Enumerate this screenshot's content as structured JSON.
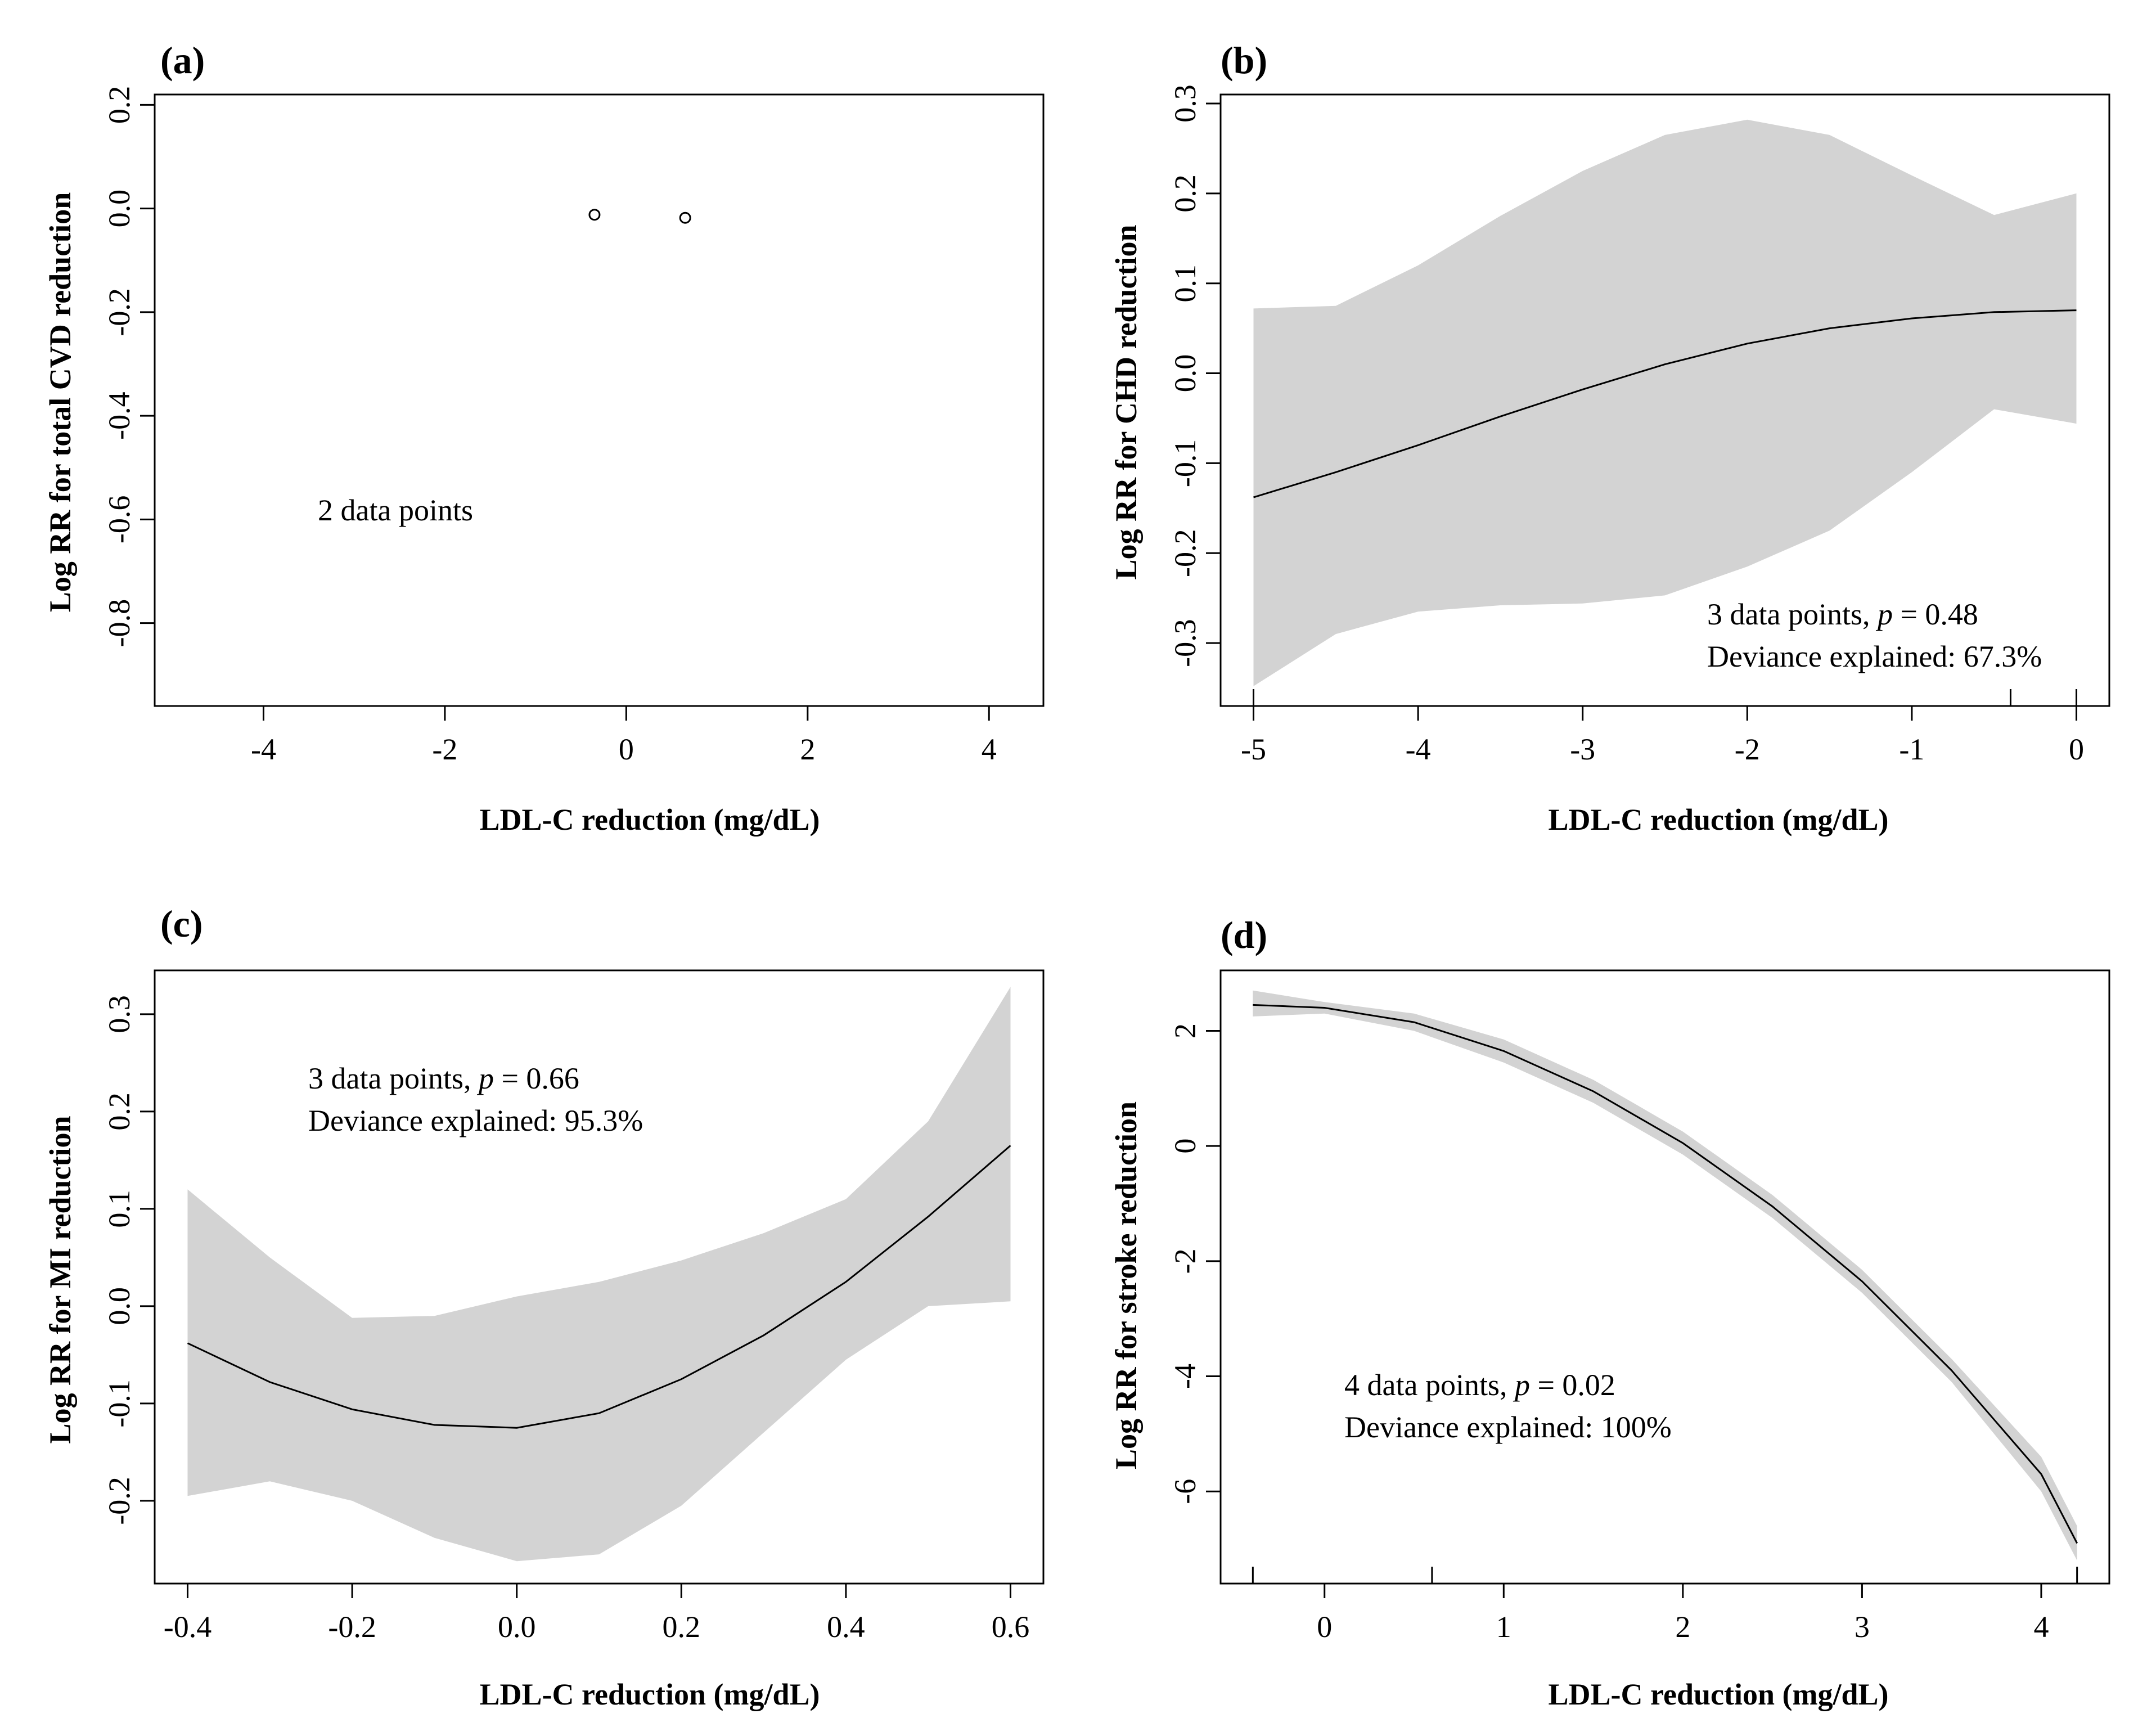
{
  "colors": {
    "band": "#d3d3d3",
    "line": "#000000",
    "frame": "#000000",
    "background": "#ffffff"
  },
  "chart_data": [
    {
      "panel": "(a)",
      "type": "scatter",
      "xlabel": "LDL-C reduction (mg/dL)",
      "ylabel": "Log RR for total CVD reduction",
      "xlim": [
        -5.2,
        4.6
      ],
      "ylim": [
        -0.96,
        0.22
      ],
      "xticks": [
        "-4",
        "-2",
        "0",
        "2",
        "4"
      ],
      "yticks": [
        "0.2",
        "0.0",
        "-0.2",
        "-0.4",
        "-0.6",
        "-0.8"
      ],
      "points": [
        {
          "x": -0.35,
          "y": -0.012
        },
        {
          "x": 0.65,
          "y": -0.018
        }
      ],
      "annotations": [
        "2 data points"
      ]
    },
    {
      "panel": "(b)",
      "type": "line",
      "xlabel": "LDL-C reduction (mg/dL)",
      "ylabel": "Log RR for CHD reduction",
      "xlim": [
        -5.2,
        0.2
      ],
      "ylim": [
        -0.37,
        0.31
      ],
      "xticks": [
        "-5",
        "-4",
        "-3",
        "-2",
        "-1",
        "0"
      ],
      "yticks": [
        "0.3",
        "0.2",
        "0.1",
        "0.0",
        "-0.1",
        "-0.2",
        "-0.3"
      ],
      "rug": [
        -5,
        -0.4,
        0
      ],
      "series": [
        {
          "x": [
            -5.0,
            -4.5,
            -4.0,
            -3.5,
            -3.0,
            -2.5,
            -2.0,
            -1.5,
            -1.0,
            -0.5,
            0.0
          ],
          "y": [
            -0.138,
            -0.11,
            -0.08,
            -0.048,
            -0.018,
            0.01,
            0.033,
            0.05,
            0.061,
            0.068,
            0.07
          ],
          "lower": [
            -0.348,
            -0.29,
            -0.265,
            -0.258,
            -0.256,
            -0.247,
            -0.215,
            -0.175,
            -0.11,
            -0.04,
            -0.056
          ],
          "upper": [
            0.072,
            0.075,
            0.12,
            0.175,
            0.225,
            0.265,
            0.282,
            0.265,
            0.22,
            0.176,
            0.2
          ]
        }
      ],
      "annotations": [
        "3 data points, ",
        "p",
        " = 0.48",
        "Deviance explained:  67.3%"
      ]
    },
    {
      "panel": "(c)",
      "type": "line",
      "xlabel": "LDL-C reduction (mg/dL)",
      "ylabel": "Log RR for MI reduction",
      "xlim": [
        -0.44,
        0.64
      ],
      "ylim": [
        -0.285,
        0.345
      ],
      "xticks": [
        "-0.4",
        "-0.2",
        "0.0",
        "0.2",
        "0.4",
        "0.6"
      ],
      "yticks": [
        "0.3",
        "0.2",
        "0.1",
        "0.0",
        "-0.1",
        "-0.2"
      ],
      "series": [
        {
          "x": [
            -0.4,
            -0.3,
            -0.2,
            -0.1,
            0.0,
            0.1,
            0.2,
            0.3,
            0.4,
            0.5,
            0.6
          ],
          "y": [
            -0.038,
            -0.078,
            -0.106,
            -0.122,
            -0.125,
            -0.11,
            -0.075,
            -0.03,
            0.025,
            0.092,
            0.165
          ],
          "lower": [
            -0.195,
            -0.18,
            -0.2,
            -0.238,
            -0.262,
            -0.255,
            -0.205,
            -0.13,
            -0.055,
            0.0,
            0.005
          ],
          "upper": [
            0.12,
            0.05,
            -0.012,
            -0.01,
            0.01,
            0.025,
            0.047,
            0.075,
            0.11,
            0.19,
            0.328
          ]
        }
      ],
      "annotations": [
        "3 data points, ",
        "p",
        " = 0.66",
        "Deviance explained:  95.3%"
      ]
    },
    {
      "panel": "(d)",
      "type": "line",
      "xlabel": "LDL-C reduction (mg/dL)",
      "ylabel": "Log RR for stroke reduction",
      "xlim": [
        -0.58,
        4.38
      ],
      "ylim": [
        -7.6,
        3.05
      ],
      "xticks": [
        "0",
        "1",
        "2",
        "3",
        "4"
      ],
      "yticks": [
        "2",
        "0",
        "-2",
        "-4",
        "-6"
      ],
      "rug": [
        -0.4,
        0.6,
        4.2
      ],
      "series": [
        {
          "x": [
            -0.4,
            0.0,
            0.5,
            1.0,
            1.5,
            2.0,
            2.5,
            3.0,
            3.5,
            4.0,
            4.2
          ],
          "y": [
            2.45,
            2.4,
            2.15,
            1.65,
            0.95,
            0.05,
            -1.05,
            -2.35,
            -3.9,
            -5.7,
            -6.9
          ],
          "lower": [
            2.25,
            2.3,
            2.0,
            1.45,
            0.75,
            -0.15,
            -1.25,
            -2.55,
            -4.1,
            -6.0,
            -7.2
          ],
          "upper": [
            2.7,
            2.5,
            2.3,
            1.85,
            1.15,
            0.25,
            -0.85,
            -2.15,
            -3.7,
            -5.4,
            -6.6
          ]
        }
      ],
      "annotations": [
        "4 data points, ",
        "p",
        " = 0.02",
        "Deviance explained:  100%"
      ]
    }
  ]
}
